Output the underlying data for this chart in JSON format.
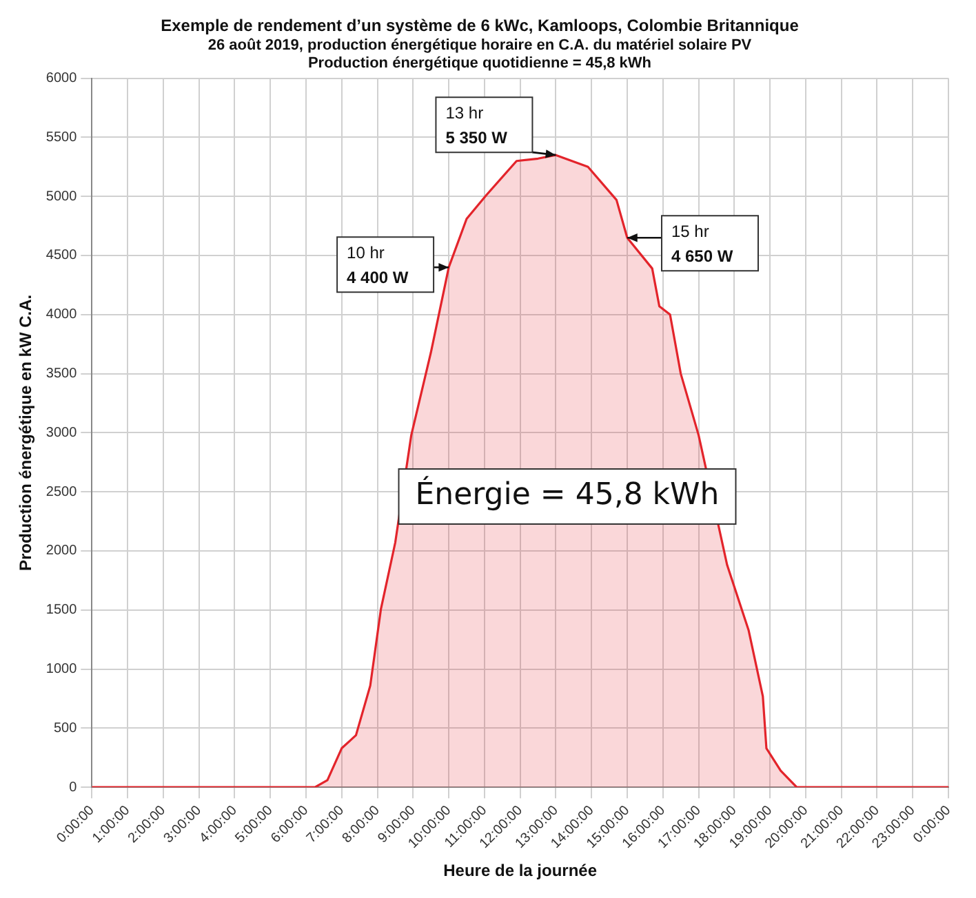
{
  "chart_data": {
    "type": "area",
    "title": "Exemple de rendement d’un système de 6 kWc, Kamloops, Colombie Britannique",
    "subtitle": "26 août 2019, production énergétique horaire en C.A. du matériel solaire PV\nProduction énergétique quotidienne = 45,8 kWh",
    "xlabel": "Heure de la journée",
    "ylabel": "Production énergétique en kW C.A.",
    "series": [
      {
        "color": "#e3242b",
        "x": [
          "2019-08-26T00:00",
          "2019-08-26T01:00",
          "2019-08-26T02:00",
          "2019-08-26T03:00",
          "2019-08-26T04:00",
          "2019-08-26T05:00",
          "2019-08-26T06:00",
          "2019-08-26T06:15",
          "2019-08-26T06:36",
          "2019-08-26T07:00",
          "2019-08-26T07:24",
          "2019-08-26T07:48",
          "2019-08-26T08:06",
          "2019-08-26T08:30",
          "2019-08-26T08:57",
          "2019-08-26T09:30",
          "2019-08-26T10:00",
          "2019-08-26T10:30",
          "2019-08-26T11:03",
          "2019-08-26T11:54",
          "2019-08-26T12:30",
          "2019-08-26T13:00",
          "2019-08-26T13:54",
          "2019-08-26T14:42",
          "2019-08-26T15:00",
          "2019-08-26T15:42",
          "2019-08-26T15:54",
          "2019-08-26T16:12",
          "2019-08-26T16:30",
          "2019-08-26T17:00",
          "2019-08-26T17:48",
          "2019-08-26T18:24",
          "2019-08-26T18:48",
          "2019-08-26T18:54",
          "2019-08-26T19:18",
          "2019-08-26T19:45",
          "2019-08-26T20:00",
          "2019-08-26T21:00",
          "2019-08-26T22:00",
          "2019-08-26T23:00",
          "2019-08-27T00:00"
        ],
        "values": [
          0,
          0,
          0,
          0,
          0,
          0,
          0,
          0,
          60,
          330,
          440,
          860,
          1510,
          2070,
          2980,
          3680,
          4400,
          4810,
          5010,
          5300,
          5320,
          5350,
          5250,
          4970,
          4650,
          4390,
          4070,
          4000,
          3500,
          2980,
          1880,
          1330,
          770,
          330,
          140,
          0,
          0,
          0,
          0,
          0,
          0
        ]
      }
    ],
    "xlim": [
      "2019-08-26T00:00",
      "2019-08-27T00:00"
    ],
    "xticks": [
      {
        "value": "2019-08-26T00:00",
        "label": "0:00:00"
      },
      {
        "value": "2019-08-26T01:00",
        "label": "1:00:00"
      },
      {
        "value": "2019-08-26T02:00",
        "label": "2:00:00"
      },
      {
        "value": "2019-08-26T03:00",
        "label": "3:00:00"
      },
      {
        "value": "2019-08-26T04:00",
        "label": "4:00:00"
      },
      {
        "value": "2019-08-26T05:00",
        "label": "5:00:00"
      },
      {
        "value": "2019-08-26T06:00",
        "label": "6:00:00"
      },
      {
        "value": "2019-08-26T07:00",
        "label": "7:00:00"
      },
      {
        "value": "2019-08-26T08:00",
        "label": "8:00:00"
      },
      {
        "value": "2019-08-26T09:00",
        "label": "9:00:00"
      },
      {
        "value": "2019-08-26T10:00",
        "label": "10:00:00"
      },
      {
        "value": "2019-08-26T11:00",
        "label": "11:00:00"
      },
      {
        "value": "2019-08-26T12:00",
        "label": "12:00:00"
      },
      {
        "value": "2019-08-26T13:00",
        "label": "13:00:00"
      },
      {
        "value": "2019-08-26T14:00",
        "label": "14:00:00"
      },
      {
        "value": "2019-08-26T15:00",
        "label": "15:00:00"
      },
      {
        "value": "2019-08-26T16:00",
        "label": "16:00:00"
      },
      {
        "value": "2019-08-26T17:00",
        "label": "17:00:00"
      },
      {
        "value": "2019-08-26T18:00",
        "label": "18:00:00"
      },
      {
        "value": "2019-08-26T19:00",
        "label": "19:00:00"
      },
      {
        "value": "2019-08-26T20:00",
        "label": "20:00:00"
      },
      {
        "value": "2019-08-26T21:00",
        "label": "21:00:00"
      },
      {
        "value": "2019-08-26T22:00",
        "label": "22:00:00"
      },
      {
        "value": "2019-08-26T23:00",
        "label": "23:00:00"
      },
      {
        "value": "2019-08-27T00:00",
        "label": "0:00:00"
      }
    ],
    "ylim": [
      0,
      6000
    ],
    "yticks": [
      0,
      500,
      1000,
      1500,
      2000,
      2500,
      3000,
      3500,
      4000,
      4500,
      5000,
      5500,
      6000
    ],
    "grid": true,
    "legend": false,
    "marker": "none",
    "line_style": "solid",
    "annotations": [
      {
        "text": "10 hr\n4 400 W",
        "x": "2019-08-26T10:00",
        "y": 4400
      },
      {
        "text": "13 hr\n5 350 W",
        "x": "2019-08-26T13:00",
        "y": 5350
      },
      {
        "text": "15 hr\n4 650 W",
        "x": "2019-08-26T15:00",
        "y": 4650
      },
      "Énergie = 45,8 kWh"
    ]
  }
}
